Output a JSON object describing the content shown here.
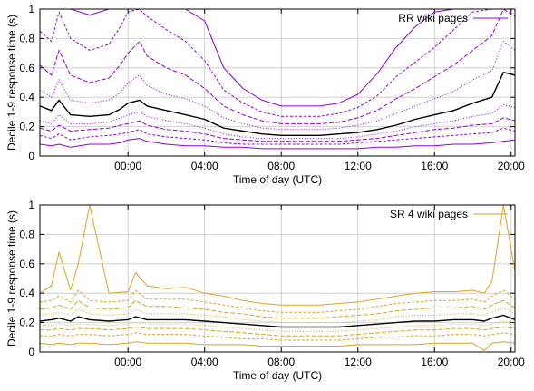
{
  "figure": {
    "xlabel": "Time of day (UTC)",
    "ylabel": "Decile 1-9 response time (s)"
  },
  "chart_data": [
    {
      "type": "line",
      "legend": "RR wiki pages",
      "legend_position": "top-right",
      "color": "#9400d3",
      "median_color": "#000000",
      "xlabel": "Time of day (UTC)",
      "ylabel": "Decile 1-9 response time (s)",
      "xlim": [
        -4.6,
        20.2
      ],
      "ylim": [
        0,
        1
      ],
      "grid": true,
      "xticks": [
        "00:00",
        "04:00",
        "08:00",
        "12:00",
        "16:00",
        "20:00"
      ],
      "xtick_hours": [
        0,
        4,
        8,
        12,
        16,
        20
      ],
      "yticks": [
        "0",
        "0.2",
        "0.4",
        "0.6",
        "0.8",
        "1"
      ],
      "ytick_values": [
        0,
        0.2,
        0.4,
        0.6,
        0.8,
        1
      ],
      "x": [
        -4.6,
        -4.0,
        -3.6,
        -3.0,
        -2.0,
        -1.0,
        -0.4,
        0.0,
        0.6,
        1.0,
        2.0,
        3.0,
        4.0,
        5.0,
        6.0,
        7.0,
        8.0,
        9.0,
        10.0,
        11.0,
        12.0,
        13.0,
        14.0,
        15.0,
        16.0,
        17.0,
        18.0,
        19.0,
        19.6,
        20.2
      ],
      "series": [
        {
          "values": [
            0.08,
            0.07,
            0.08,
            0.06,
            0.08,
            0.08,
            0.09,
            0.11,
            0.12,
            0.1,
            0.08,
            0.07,
            0.07,
            0.06,
            0.06,
            0.05,
            0.05,
            0.05,
            0.05,
            0.05,
            0.05,
            0.06,
            0.06,
            0.07,
            0.07,
            0.08,
            0.08,
            0.09,
            0.1,
            0.11
          ]
        },
        {
          "values": [
            0.14,
            0.12,
            0.15,
            0.11,
            0.13,
            0.14,
            0.15,
            0.16,
            0.18,
            0.15,
            0.13,
            0.12,
            0.11,
            0.09,
            0.08,
            0.08,
            0.08,
            0.08,
            0.08,
            0.08,
            0.09,
            0.1,
            0.11,
            0.12,
            0.13,
            0.14,
            0.15,
            0.16,
            0.19,
            0.17
          ]
        },
        {
          "values": [
            0.19,
            0.17,
            0.21,
            0.17,
            0.18,
            0.19,
            0.21,
            0.22,
            0.24,
            0.21,
            0.18,
            0.17,
            0.15,
            0.12,
            0.11,
            0.1,
            0.1,
            0.1,
            0.1,
            0.1,
            0.11,
            0.12,
            0.14,
            0.16,
            0.18,
            0.19,
            0.21,
            0.22,
            0.26,
            0.24
          ]
        },
        {
          "values": [
            0.24,
            0.22,
            0.28,
            0.22,
            0.22,
            0.23,
            0.26,
            0.28,
            0.3,
            0.27,
            0.24,
            0.22,
            0.19,
            0.15,
            0.13,
            0.12,
            0.12,
            0.12,
            0.12,
            0.12,
            0.13,
            0.15,
            0.17,
            0.2,
            0.22,
            0.24,
            0.27,
            0.29,
            0.35,
            0.33
          ]
        },
        {
          "values": [
            0.34,
            0.31,
            0.38,
            0.28,
            0.27,
            0.28,
            0.32,
            0.36,
            0.38,
            0.34,
            0.31,
            0.28,
            0.25,
            0.19,
            0.17,
            0.15,
            0.14,
            0.14,
            0.14,
            0.15,
            0.16,
            0.18,
            0.21,
            0.25,
            0.28,
            0.31,
            0.36,
            0.4,
            0.57,
            0.55
          ]
        },
        {
          "values": [
            0.45,
            0.4,
            0.52,
            0.38,
            0.36,
            0.38,
            0.43,
            0.5,
            0.55,
            0.48,
            0.42,
            0.39,
            0.34,
            0.26,
            0.22,
            0.19,
            0.18,
            0.18,
            0.18,
            0.19,
            0.21,
            0.24,
            0.29,
            0.34,
            0.39,
            0.44,
            0.52,
            0.58,
            0.78,
            0.72
          ]
        },
        {
          "values": [
            0.62,
            0.55,
            0.72,
            0.55,
            0.5,
            0.53,
            0.62,
            0.7,
            0.78,
            0.68,
            0.6,
            0.55,
            0.46,
            0.34,
            0.28,
            0.24,
            0.22,
            0.22,
            0.22,
            0.23,
            0.26,
            0.31,
            0.39,
            0.46,
            0.54,
            0.62,
            0.72,
            0.82,
            1.0,
            0.95
          ]
        },
        {
          "values": [
            0.85,
            0.78,
            0.98,
            0.8,
            0.72,
            0.76,
            0.88,
            0.98,
            1.0,
            0.95,
            0.86,
            0.78,
            0.65,
            0.45,
            0.36,
            0.3,
            0.27,
            0.27,
            0.27,
            0.29,
            0.33,
            0.41,
            0.54,
            0.64,
            0.74,
            0.86,
            0.98,
            1.0,
            1.0,
            1.0
          ]
        },
        {
          "values": [
            1.0,
            1.0,
            1.0,
            1.0,
            0.96,
            1.0,
            1.0,
            1.0,
            1.0,
            1.0,
            1.0,
            1.0,
            0.92,
            0.6,
            0.46,
            0.38,
            0.34,
            0.34,
            0.34,
            0.36,
            0.42,
            0.56,
            0.74,
            0.88,
            0.98,
            1.0,
            1.0,
            1.0,
            1.0,
            1.0
          ]
        }
      ]
    },
    {
      "type": "line",
      "legend": "SR 4 wiki pages",
      "legend_position": "top-right",
      "color": "#daa520",
      "median_color": "#000000",
      "xlabel": "Time of day (UTC)",
      "ylabel": "Decile 1-9 response time (s)",
      "xlim": [
        -4.6,
        20.2
      ],
      "ylim": [
        0,
        1
      ],
      "grid": true,
      "xticks": [
        "00:00",
        "04:00",
        "08:00",
        "12:00",
        "16:00",
        "20:00"
      ],
      "xtick_hours": [
        0,
        4,
        8,
        12,
        16,
        20
      ],
      "yticks": [
        "0",
        "0.2",
        "0.4",
        "0.6",
        "0.8",
        "1"
      ],
      "ytick_values": [
        0,
        0.2,
        0.4,
        0.6,
        0.8,
        1
      ],
      "x": [
        -4.6,
        -4.0,
        -3.6,
        -3.0,
        -2.6,
        -2.0,
        -1.0,
        0.0,
        0.4,
        1.0,
        2.0,
        3.0,
        4.0,
        5.0,
        6.0,
        7.0,
        8.0,
        9.0,
        10.0,
        11.0,
        12.0,
        13.0,
        14.0,
        15.0,
        16.0,
        17.0,
        18.0,
        18.6,
        19.0,
        19.6,
        20.2
      ],
      "series": [
        {
          "values": [
            0.06,
            0.05,
            0.06,
            0.05,
            0.06,
            0.06,
            0.05,
            0.06,
            0.07,
            0.06,
            0.06,
            0.06,
            0.05,
            0.05,
            0.05,
            0.04,
            0.04,
            0.04,
            0.04,
            0.04,
            0.05,
            0.05,
            0.05,
            0.05,
            0.06,
            0.06,
            0.06,
            0.01,
            0.06,
            0.07,
            0.06
          ]
        },
        {
          "values": [
            0.11,
            0.11,
            0.12,
            0.11,
            0.12,
            0.12,
            0.11,
            0.12,
            0.13,
            0.12,
            0.12,
            0.12,
            0.11,
            0.1,
            0.09,
            0.09,
            0.08,
            0.08,
            0.08,
            0.08,
            0.09,
            0.1,
            0.1,
            0.11,
            0.11,
            0.12,
            0.12,
            0.11,
            0.12,
            0.13,
            0.12
          ]
        },
        {
          "values": [
            0.15,
            0.15,
            0.16,
            0.15,
            0.16,
            0.16,
            0.15,
            0.16,
            0.17,
            0.16,
            0.16,
            0.16,
            0.15,
            0.14,
            0.13,
            0.12,
            0.11,
            0.11,
            0.11,
            0.11,
            0.12,
            0.13,
            0.14,
            0.15,
            0.15,
            0.16,
            0.16,
            0.15,
            0.16,
            0.17,
            0.16
          ]
        },
        {
          "values": [
            0.18,
            0.18,
            0.19,
            0.18,
            0.19,
            0.19,
            0.18,
            0.19,
            0.2,
            0.19,
            0.19,
            0.19,
            0.18,
            0.17,
            0.16,
            0.15,
            0.14,
            0.14,
            0.14,
            0.14,
            0.15,
            0.16,
            0.17,
            0.18,
            0.18,
            0.19,
            0.19,
            0.18,
            0.19,
            0.21,
            0.2
          ]
        },
        {
          "values": [
            0.21,
            0.22,
            0.23,
            0.21,
            0.24,
            0.22,
            0.21,
            0.22,
            0.24,
            0.22,
            0.22,
            0.22,
            0.21,
            0.2,
            0.19,
            0.18,
            0.17,
            0.17,
            0.17,
            0.17,
            0.18,
            0.19,
            0.2,
            0.21,
            0.21,
            0.22,
            0.22,
            0.21,
            0.23,
            0.25,
            0.22
          ]
        },
        {
          "values": [
            0.25,
            0.26,
            0.27,
            0.25,
            0.29,
            0.26,
            0.25,
            0.26,
            0.29,
            0.26,
            0.26,
            0.26,
            0.25,
            0.24,
            0.22,
            0.21,
            0.2,
            0.2,
            0.2,
            0.2,
            0.21,
            0.22,
            0.24,
            0.25,
            0.25,
            0.26,
            0.26,
            0.25,
            0.27,
            0.3,
            0.26
          ]
        },
        {
          "values": [
            0.29,
            0.3,
            0.32,
            0.29,
            0.35,
            0.3,
            0.29,
            0.3,
            0.35,
            0.31,
            0.31,
            0.3,
            0.29,
            0.27,
            0.26,
            0.24,
            0.23,
            0.23,
            0.23,
            0.24,
            0.25,
            0.26,
            0.28,
            0.29,
            0.3,
            0.3,
            0.31,
            0.29,
            0.32,
            0.35,
            0.3
          ]
        },
        {
          "values": [
            0.34,
            0.35,
            0.38,
            0.34,
            0.42,
            0.35,
            0.34,
            0.35,
            0.42,
            0.36,
            0.36,
            0.36,
            0.34,
            0.32,
            0.3,
            0.28,
            0.27,
            0.27,
            0.27,
            0.28,
            0.29,
            0.31,
            0.33,
            0.34,
            0.35,
            0.35,
            0.36,
            0.34,
            0.38,
            0.42,
            0.36
          ]
        },
        {
          "values": [
            0.4,
            0.45,
            0.68,
            0.42,
            0.6,
            1.0,
            0.4,
            0.41,
            0.54,
            0.45,
            0.43,
            0.44,
            0.4,
            0.38,
            0.35,
            0.33,
            0.32,
            0.32,
            0.32,
            0.33,
            0.34,
            0.36,
            0.38,
            0.4,
            0.41,
            0.41,
            0.42,
            0.4,
            0.48,
            1.0,
            0.55
          ]
        }
      ]
    }
  ]
}
